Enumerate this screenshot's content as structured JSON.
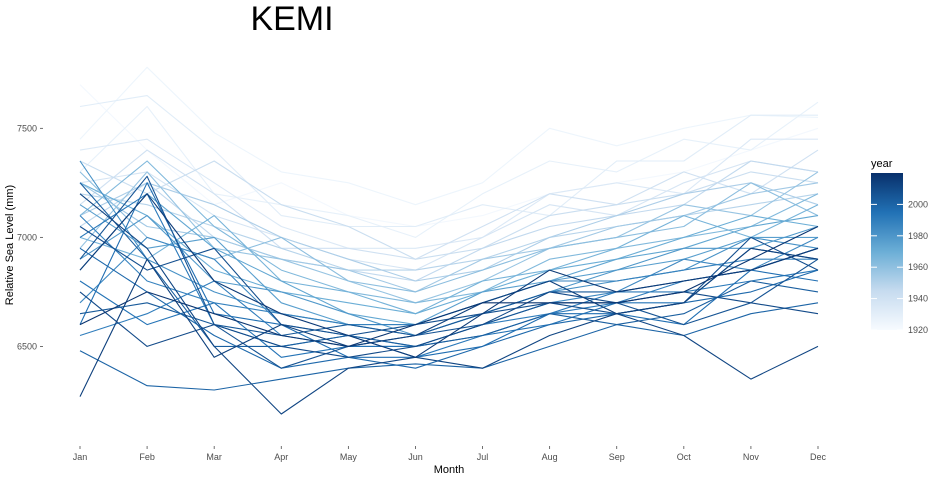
{
  "chart_data": {
    "type": "line",
    "title": "KEMI",
    "xlabel": "Month",
    "ylabel": "Relative Sea Level (mm)",
    "categories": [
      "Jan",
      "Feb",
      "Mar",
      "Apr",
      "May",
      "Jun",
      "Jul",
      "Aug",
      "Sep",
      "Oct",
      "Nov",
      "Dec"
    ],
    "y_ticks": [
      6500,
      7000,
      7500
    ],
    "ylim": [
      6080,
      7850
    ],
    "grid": false,
    "legend": {
      "title": "year",
      "type": "colorbar",
      "position": "right",
      "range": [
        1920,
        2020
      ],
      "ticks": [
        1920,
        1940,
        1960,
        1980,
        2000
      ],
      "color_low": "#f7fbff",
      "color_high": "#08306b"
    },
    "series": [
      {
        "year": 1922,
        "values": [
          7700,
          7400,
          7150,
          7250,
          7100,
          7050,
          7100,
          7200,
          7250,
          7300,
          7400,
          7500
        ]
      },
      {
        "year": 1925,
        "values": [
          7450,
          7780,
          7480,
          7300,
          7250,
          7150,
          7250,
          7500,
          7420,
          7500,
          7560,
          7550
        ]
      },
      {
        "year": 1928,
        "values": [
          7300,
          7600,
          7200,
          7150,
          7100,
          7000,
          7200,
          7350,
          7300,
          7450,
          7400,
          7620
        ]
      },
      {
        "year": 1931,
        "values": [
          7600,
          7650,
          7400,
          7100,
          7050,
          7050,
          7150,
          7100,
          7350,
          7350,
          7560,
          7560
        ]
      },
      {
        "year": 1934,
        "values": [
          7400,
          7450,
          7250,
          7050,
          6950,
          6950,
          7000,
          7200,
          7250,
          7200,
          7450,
          7450
        ]
      },
      {
        "year": 1937,
        "values": [
          7250,
          7300,
          7100,
          7000,
          6900,
          6850,
          7000,
          7150,
          7100,
          7250,
          7350,
          7300
        ]
      },
      {
        "year": 1940,
        "values": [
          7150,
          7400,
          7200,
          6950,
          6950,
          6900,
          7050,
          7200,
          7150,
          7300,
          7200,
          7400
        ]
      },
      {
        "year": 1943,
        "values": [
          7350,
          7200,
          7350,
          7150,
          7050,
          6900,
          6950,
          7100,
          7150,
          7200,
          7300,
          7250
        ]
      },
      {
        "year": 1946,
        "values": [
          7050,
          7250,
          7000,
          6900,
          6850,
          6800,
          6950,
          7050,
          7100,
          7150,
          7350,
          7300
        ]
      },
      {
        "year": 1949,
        "values": [
          7200,
          7150,
          7050,
          6950,
          6850,
          6850,
          6900,
          7000,
          7050,
          7100,
          7150,
          7200
        ]
      },
      {
        "year": 1952,
        "values": [
          7100,
          7250,
          7150,
          7000,
          6900,
          6800,
          6850,
          7000,
          7100,
          7200,
          7250,
          7150
        ]
      },
      {
        "year": 1955,
        "values": [
          7250,
          7050,
          7000,
          6900,
          6850,
          6750,
          6900,
          6950,
          7050,
          7100,
          7200,
          7250
        ]
      },
      {
        "year": 1958,
        "values": [
          6950,
          7300,
          6950,
          6900,
          6800,
          6700,
          6800,
          6950,
          7000,
          7150,
          7100,
          7300
        ]
      },
      {
        "year": 1961,
        "values": [
          7300,
          7000,
          6900,
          7000,
          6800,
          6750,
          6850,
          6950,
          7000,
          7050,
          7250,
          7100
        ]
      },
      {
        "year": 1964,
        "values": [
          7100,
          7350,
          7050,
          6850,
          6750,
          6700,
          6750,
          6900,
          6950,
          7000,
          7050,
          7200
        ]
      },
      {
        "year": 1967,
        "values": [
          7000,
          6900,
          7100,
          6800,
          6750,
          6650,
          6800,
          6850,
          6950,
          7100,
          7000,
          7150
        ]
      },
      {
        "year": 1970,
        "values": [
          7250,
          7100,
          6850,
          6750,
          6700,
          6650,
          6750,
          6850,
          6900,
          7000,
          7100,
          7050
        ]
      },
      {
        "year": 1973,
        "values": [
          6850,
          7200,
          6950,
          6800,
          6650,
          6600,
          6700,
          6800,
          6900,
          6950,
          7050,
          7100
        ]
      },
      {
        "year": 1976,
        "values": [
          7150,
          6950,
          7000,
          6700,
          6600,
          6600,
          6750,
          6800,
          6850,
          6900,
          7000,
          7000
        ]
      },
      {
        "year": 1979,
        "values": [
          6900,
          7100,
          6800,
          6750,
          6650,
          6550,
          6650,
          6750,
          6850,
          6950,
          6950,
          7050
        ]
      },
      {
        "year": 1982,
        "values": [
          7350,
          6900,
          6750,
          6650,
          6600,
          6550,
          6650,
          6750,
          6800,
          6850,
          7000,
          6950
        ]
      },
      {
        "year": 1985,
        "values": [
          6700,
          7000,
          6900,
          6600,
          6550,
          6500,
          6600,
          6700,
          6750,
          6900,
          6850,
          7000
        ]
      },
      {
        "year": 1988,
        "values": [
          7100,
          6800,
          6700,
          6650,
          6600,
          6600,
          6700,
          6800,
          6800,
          6850,
          6900,
          6900
        ]
      },
      {
        "year": 1990,
        "values": [
          6550,
          6650,
          6800,
          6550,
          6500,
          6500,
          6600,
          6650,
          6700,
          6800,
          6850,
          6950
        ]
      },
      {
        "year": 1992,
        "values": [
          7000,
          7200,
          6600,
          6500,
          6550,
          6450,
          6550,
          6650,
          6750,
          6750,
          6800,
          6850
        ]
      },
      {
        "year": 1994,
        "values": [
          6800,
          6600,
          6700,
          6450,
          6500,
          6500,
          6550,
          6600,
          6700,
          6700,
          6950,
          6900
        ]
      },
      {
        "year": 1996,
        "values": [
          6600,
          7250,
          6650,
          6600,
          6450,
          6450,
          6500,
          6650,
          6650,
          6600,
          6850,
          6800
        ]
      },
      {
        "year": 1998,
        "values": [
          6950,
          6750,
          6550,
          6400,
          6450,
          6400,
          6500,
          6600,
          6650,
          6700,
          6750,
          6850
        ]
      },
      {
        "year": 2000,
        "values": [
          6480,
          6320,
          6300,
          6350,
          6400,
          6420,
          6400,
          6500,
          6600,
          6550,
          6650,
          6700
        ]
      },
      {
        "year": 2002,
        "values": [
          7250,
          6900,
          6500,
          6500,
          6550,
          6500,
          6550,
          6650,
          6600,
          6650,
          6800,
          6750
        ]
      },
      {
        "year": 2004,
        "values": [
          6650,
          6700,
          6600,
          6550,
          6600,
          6550,
          6650,
          6750,
          6750,
          6800,
          6850,
          6950
        ]
      },
      {
        "year": 2006,
        "values": [
          6900,
          7280,
          6600,
          6400,
          6500,
          6550,
          6600,
          6700,
          6700,
          6600,
          6700,
          6900
        ]
      },
      {
        "year": 2008,
        "values": [
          7050,
          6850,
          6950,
          6600,
          6550,
          6600,
          6650,
          6700,
          6650,
          6700,
          7000,
          6850
        ]
      },
      {
        "year": 2010,
        "values": [
          6750,
          6500,
          6600,
          6500,
          6450,
          6500,
          6600,
          6750,
          6700,
          6750,
          6700,
          6650
        ]
      },
      {
        "year": 2012,
        "values": [
          7200,
          6950,
          6500,
          6190,
          6400,
          6450,
          6400,
          6550,
          6650,
          6550,
          6350,
          6500
        ]
      },
      {
        "year": 2014,
        "values": [
          6270,
          6900,
          6450,
          6600,
          6500,
          6550,
          6700,
          6800,
          6650,
          6700,
          6950,
          6900
        ]
      },
      {
        "year": 2016,
        "values": [
          6850,
          7200,
          6800,
          6650,
          6550,
          6450,
          6650,
          6850,
          6750,
          6800,
          6850,
          6950
        ]
      },
      {
        "year": 2018,
        "values": [
          6600,
          6750,
          6650,
          6550,
          6500,
          6600,
          6700,
          6700,
          6700,
          6750,
          6900,
          7050
        ]
      }
    ]
  }
}
